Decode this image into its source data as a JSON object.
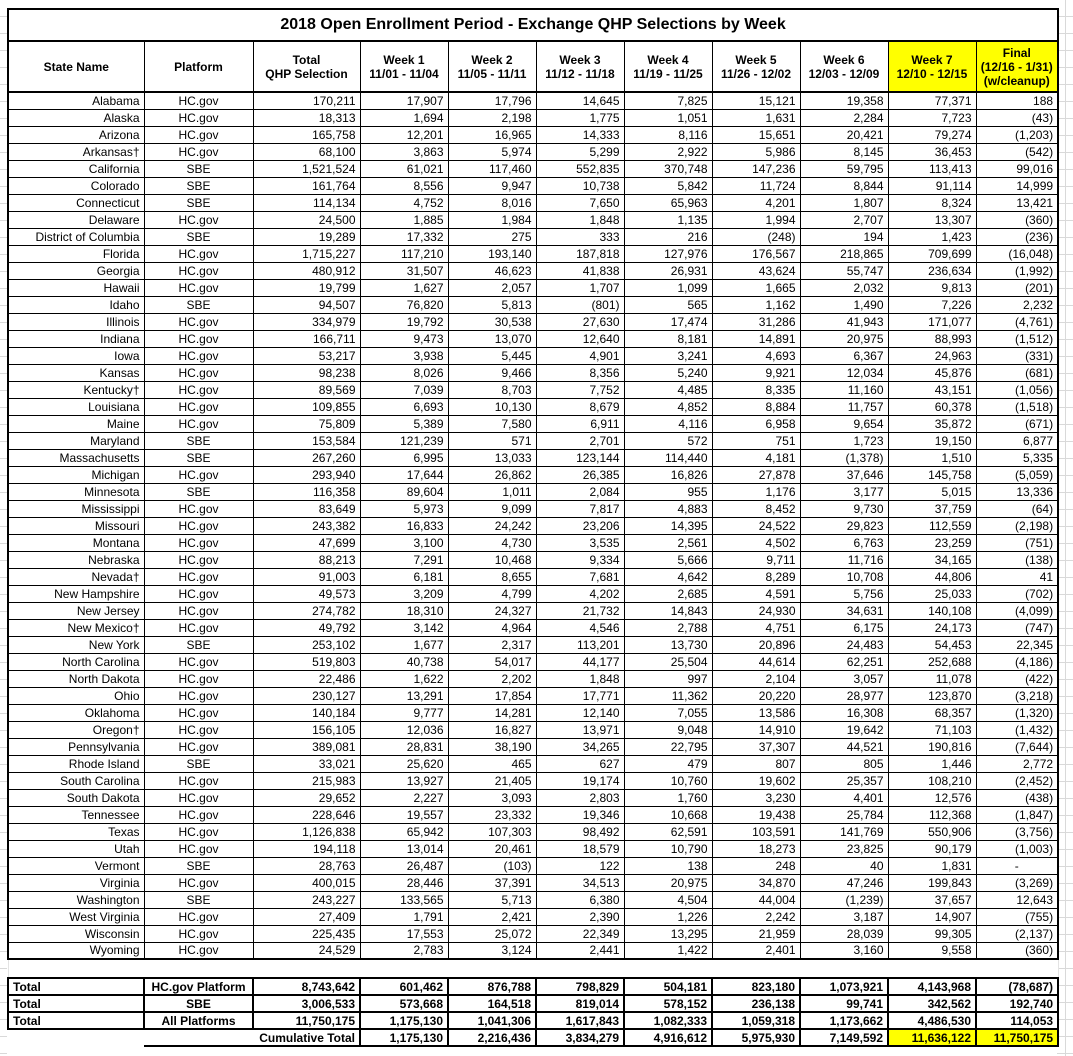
{
  "colors": {
    "highlight": "#FFFF00",
    "border": "#000000",
    "gridline": "#D9D9D9"
  },
  "table": {
    "title": "2018 Open Enrollment Period - Exchange QHP Selections by Week",
    "columns": [
      {
        "id": "state-name",
        "lines": [
          "State Name"
        ],
        "highlight": false
      },
      {
        "id": "platform",
        "lines": [
          "Platform"
        ],
        "highlight": false
      },
      {
        "id": "total-qhp-selection",
        "lines": [
          "Total",
          "QHP Selection"
        ],
        "highlight": false
      },
      {
        "id": "week-1",
        "lines": [
          "Week 1",
          "11/01 - 11/04"
        ],
        "highlight": false
      },
      {
        "id": "week-2",
        "lines": [
          "Week 2",
          "11/05 - 11/11"
        ],
        "highlight": false
      },
      {
        "id": "week-3",
        "lines": [
          "Week 3",
          "11/12 - 11/18"
        ],
        "highlight": false
      },
      {
        "id": "week-4",
        "lines": [
          "Week 4",
          "11/19 - 11/25"
        ],
        "highlight": false
      },
      {
        "id": "week-5",
        "lines": [
          "Week 5",
          "11/26 - 12/02"
        ],
        "highlight": false
      },
      {
        "id": "week-6",
        "lines": [
          "Week 6",
          "12/03 - 12/09"
        ],
        "highlight": false
      },
      {
        "id": "week-7",
        "lines": [
          "Week 7",
          "12/10 - 12/15"
        ],
        "highlight": true
      },
      {
        "id": "final",
        "lines": [
          "Final",
          "(12/16 - 1/31)",
          "(w/cleanup)"
        ],
        "highlight": true
      }
    ],
    "rows": [
      [
        "Alabama",
        "HC.gov",
        "170,211",
        "17,907",
        "17,796",
        "14,645",
        "7,825",
        "15,121",
        "19,358",
        "77,371",
        "188"
      ],
      [
        "Alaska",
        "HC.gov",
        "18,313",
        "1,694",
        "2,198",
        "1,775",
        "1,051",
        "1,631",
        "2,284",
        "7,723",
        "(43)"
      ],
      [
        "Arizona",
        "HC.gov",
        "165,758",
        "12,201",
        "16,965",
        "14,333",
        "8,116",
        "15,651",
        "20,421",
        "79,274",
        "(1,203)"
      ],
      [
        "Arkansas†",
        "HC.gov",
        "68,100",
        "3,863",
        "5,974",
        "5,299",
        "2,922",
        "5,986",
        "8,145",
        "36,453",
        "(542)"
      ],
      [
        "California",
        "SBE",
        "1,521,524",
        "61,021",
        "117,460",
        "552,835",
        "370,748",
        "147,236",
        "59,795",
        "113,413",
        "99,016"
      ],
      [
        "Colorado",
        "SBE",
        "161,764",
        "8,556",
        "9,947",
        "10,738",
        "5,842",
        "11,724",
        "8,844",
        "91,114",
        "14,999"
      ],
      [
        "Connecticut",
        "SBE",
        "114,134",
        "4,752",
        "8,016",
        "7,650",
        "65,963",
        "4,201",
        "1,807",
        "8,324",
        "13,421"
      ],
      [
        "Delaware",
        "HC.gov",
        "24,500",
        "1,885",
        "1,984",
        "1,848",
        "1,135",
        "1,994",
        "2,707",
        "13,307",
        "(360)"
      ],
      [
        "District of Columbia",
        "SBE",
        "19,289",
        "17,332",
        "275",
        "333",
        "216",
        "(248)",
        "194",
        "1,423",
        "(236)"
      ],
      [
        "Florida",
        "HC.gov",
        "1,715,227",
        "117,210",
        "193,140",
        "187,818",
        "127,976",
        "176,567",
        "218,865",
        "709,699",
        "(16,048)"
      ],
      [
        "Georgia",
        "HC.gov",
        "480,912",
        "31,507",
        "46,623",
        "41,838",
        "26,931",
        "43,624",
        "55,747",
        "236,634",
        "(1,992)"
      ],
      [
        "Hawaii",
        "HC.gov",
        "19,799",
        "1,627",
        "2,057",
        "1,707",
        "1,099",
        "1,665",
        "2,032",
        "9,813",
        "(201)"
      ],
      [
        "Idaho",
        "SBE",
        "94,507",
        "76,820",
        "5,813",
        "(801)",
        "565",
        "1,162",
        "1,490",
        "7,226",
        "2,232"
      ],
      [
        "Illinois",
        "HC.gov",
        "334,979",
        "19,792",
        "30,538",
        "27,630",
        "17,474",
        "31,286",
        "41,943",
        "171,077",
        "(4,761)"
      ],
      [
        "Indiana",
        "HC.gov",
        "166,711",
        "9,473",
        "13,070",
        "12,640",
        "8,181",
        "14,891",
        "20,975",
        "88,993",
        "(1,512)"
      ],
      [
        "Iowa",
        "HC.gov",
        "53,217",
        "3,938",
        "5,445",
        "4,901",
        "3,241",
        "4,693",
        "6,367",
        "24,963",
        "(331)"
      ],
      [
        "Kansas",
        "HC.gov",
        "98,238",
        "8,026",
        "9,466",
        "8,356",
        "5,240",
        "9,921",
        "12,034",
        "45,876",
        "(681)"
      ],
      [
        "Kentucky†",
        "HC.gov",
        "89,569",
        "7,039",
        "8,703",
        "7,752",
        "4,485",
        "8,335",
        "11,160",
        "43,151",
        "(1,056)"
      ],
      [
        "Louisiana",
        "HC.gov",
        "109,855",
        "6,693",
        "10,130",
        "8,679",
        "4,852",
        "8,884",
        "11,757",
        "60,378",
        "(1,518)"
      ],
      [
        "Maine",
        "HC.gov",
        "75,809",
        "5,389",
        "7,580",
        "6,911",
        "4,116",
        "6,958",
        "9,654",
        "35,872",
        "(671)"
      ],
      [
        "Maryland",
        "SBE",
        "153,584",
        "121,239",
        "571",
        "2,701",
        "572",
        "751",
        "1,723",
        "19,150",
        "6,877"
      ],
      [
        "Massachusetts",
        "SBE",
        "267,260",
        "6,995",
        "13,033",
        "123,144",
        "114,440",
        "4,181",
        "(1,378)",
        "1,510",
        "5,335"
      ],
      [
        "Michigan",
        "HC.gov",
        "293,940",
        "17,644",
        "26,862",
        "26,385",
        "16,826",
        "27,878",
        "37,646",
        "145,758",
        "(5,059)"
      ],
      [
        "Minnesota",
        "SBE",
        "116,358",
        "89,604",
        "1,011",
        "2,084",
        "955",
        "1,176",
        "3,177",
        "5,015",
        "13,336"
      ],
      [
        "Mississippi",
        "HC.gov",
        "83,649",
        "5,973",
        "9,099",
        "7,817",
        "4,883",
        "8,452",
        "9,730",
        "37,759",
        "(64)"
      ],
      [
        "Missouri",
        "HC.gov",
        "243,382",
        "16,833",
        "24,242",
        "23,206",
        "14,395",
        "24,522",
        "29,823",
        "112,559",
        "(2,198)"
      ],
      [
        "Montana",
        "HC.gov",
        "47,699",
        "3,100",
        "4,730",
        "3,535",
        "2,561",
        "4,502",
        "6,763",
        "23,259",
        "(751)"
      ],
      [
        "Nebraska",
        "HC.gov",
        "88,213",
        "7,291",
        "10,468",
        "9,334",
        "5,666",
        "9,711",
        "11,716",
        "34,165",
        "(138)"
      ],
      [
        "Nevada†",
        "HC.gov",
        "91,003",
        "6,181",
        "8,655",
        "7,681",
        "4,642",
        "8,289",
        "10,708",
        "44,806",
        "41"
      ],
      [
        "New Hampshire",
        "HC.gov",
        "49,573",
        "3,209",
        "4,799",
        "4,202",
        "2,685",
        "4,591",
        "5,756",
        "25,033",
        "(702)"
      ],
      [
        "New Jersey",
        "HC.gov",
        "274,782",
        "18,310",
        "24,327",
        "21,732",
        "14,843",
        "24,930",
        "34,631",
        "140,108",
        "(4,099)"
      ],
      [
        "New Mexico†",
        "HC.gov",
        "49,792",
        "3,142",
        "4,964",
        "4,546",
        "2,788",
        "4,751",
        "6,175",
        "24,173",
        "(747)"
      ],
      [
        "New York",
        "SBE",
        "253,102",
        "1,677",
        "2,317",
        "113,201",
        "13,730",
        "20,896",
        "24,483",
        "54,453",
        "22,345"
      ],
      [
        "North Carolina",
        "HC.gov",
        "519,803",
        "40,738",
        "54,017",
        "44,177",
        "25,504",
        "44,614",
        "62,251",
        "252,688",
        "(4,186)"
      ],
      [
        "North Dakota",
        "HC.gov",
        "22,486",
        "1,622",
        "2,202",
        "1,848",
        "997",
        "2,104",
        "3,057",
        "11,078",
        "(422)"
      ],
      [
        "Ohio",
        "HC.gov",
        "230,127",
        "13,291",
        "17,854",
        "17,771",
        "11,362",
        "20,220",
        "28,977",
        "123,870",
        "(3,218)"
      ],
      [
        "Oklahoma",
        "HC.gov",
        "140,184",
        "9,777",
        "14,281",
        "12,140",
        "7,055",
        "13,586",
        "16,308",
        "68,357",
        "(1,320)"
      ],
      [
        "Oregon†",
        "HC.gov",
        "156,105",
        "12,036",
        "16,827",
        "13,971",
        "9,048",
        "14,910",
        "19,642",
        "71,103",
        "(1,432)"
      ],
      [
        "Pennsylvania",
        "HC.gov",
        "389,081",
        "28,831",
        "38,190",
        "34,265",
        "22,795",
        "37,307",
        "44,521",
        "190,816",
        "(7,644)"
      ],
      [
        "Rhode Island",
        "SBE",
        "33,021",
        "25,620",
        "465",
        "627",
        "479",
        "807",
        "805",
        "1,446",
        "2,772"
      ],
      [
        "South Carolina",
        "HC.gov",
        "215,983",
        "13,927",
        "21,405",
        "19,174",
        "10,760",
        "19,602",
        "25,357",
        "108,210",
        "(2,452)"
      ],
      [
        "South Dakota",
        "HC.gov",
        "29,652",
        "2,227",
        "3,093",
        "2,803",
        "1,760",
        "3,230",
        "4,401",
        "12,576",
        "(438)"
      ],
      [
        "Tennessee",
        "HC.gov",
        "228,646",
        "19,557",
        "23,332",
        "19,346",
        "10,668",
        "19,438",
        "25,784",
        "112,368",
        "(1,847)"
      ],
      [
        "Texas",
        "HC.gov",
        "1,126,838",
        "65,942",
        "107,303",
        "98,492",
        "62,591",
        "103,591",
        "141,769",
        "550,906",
        "(3,756)"
      ],
      [
        "Utah",
        "HC.gov",
        "194,118",
        "13,014",
        "20,461",
        "18,579",
        "10,790",
        "18,273",
        "23,825",
        "90,179",
        "(1,003)"
      ],
      [
        "Vermont",
        "SBE",
        "28,763",
        "26,487",
        "(103)",
        "122",
        "138",
        "248",
        "40",
        "1,831",
        "-"
      ],
      [
        "Virginia",
        "HC.gov",
        "400,015",
        "28,446",
        "37,391",
        "34,513",
        "20,975",
        "34,870",
        "47,246",
        "199,843",
        "(3,269)"
      ],
      [
        "Washington",
        "SBE",
        "243,227",
        "133,565",
        "5,713",
        "6,380",
        "4,504",
        "44,004",
        "(1,239)",
        "37,657",
        "12,643"
      ],
      [
        "West Virginia",
        "HC.gov",
        "27,409",
        "1,791",
        "2,421",
        "2,390",
        "1,226",
        "2,242",
        "3,187",
        "14,907",
        "(755)"
      ],
      [
        "Wisconsin",
        "HC.gov",
        "225,435",
        "17,553",
        "25,072",
        "22,349",
        "13,295",
        "21,959",
        "28,039",
        "99,305",
        "(2,137)"
      ],
      [
        "Wyoming",
        "HC.gov",
        "24,529",
        "2,783",
        "3,124",
        "2,441",
        "1,422",
        "2,401",
        "3,160",
        "9,558",
        "(360)"
      ]
    ]
  },
  "footer": {
    "rows": [
      [
        "Total",
        "HC.gov Platform",
        "8,743,642",
        "601,462",
        "876,788",
        "798,829",
        "504,181",
        "823,180",
        "1,073,921",
        "4,143,968",
        "(78,687)"
      ],
      [
        "Total",
        "SBE",
        "3,006,533",
        "573,668",
        "164,518",
        "819,014",
        "578,152",
        "236,138",
        "99,741",
        "342,562",
        "192,740"
      ],
      [
        "Total",
        "All Platforms",
        "11,750,175",
        "1,175,130",
        "1,041,306",
        "1,617,843",
        "1,082,333",
        "1,059,318",
        "1,173,662",
        "4,486,530",
        "114,053"
      ]
    ],
    "cumulative_label": "Cumulative Total",
    "cumulative_values": [
      "1,175,130",
      "2,216,436",
      "3,834,279",
      "4,916,612",
      "5,975,930",
      "7,149,592",
      "11,636,122",
      "11,750,175"
    ],
    "cumulative_highlight_from": 6
  }
}
